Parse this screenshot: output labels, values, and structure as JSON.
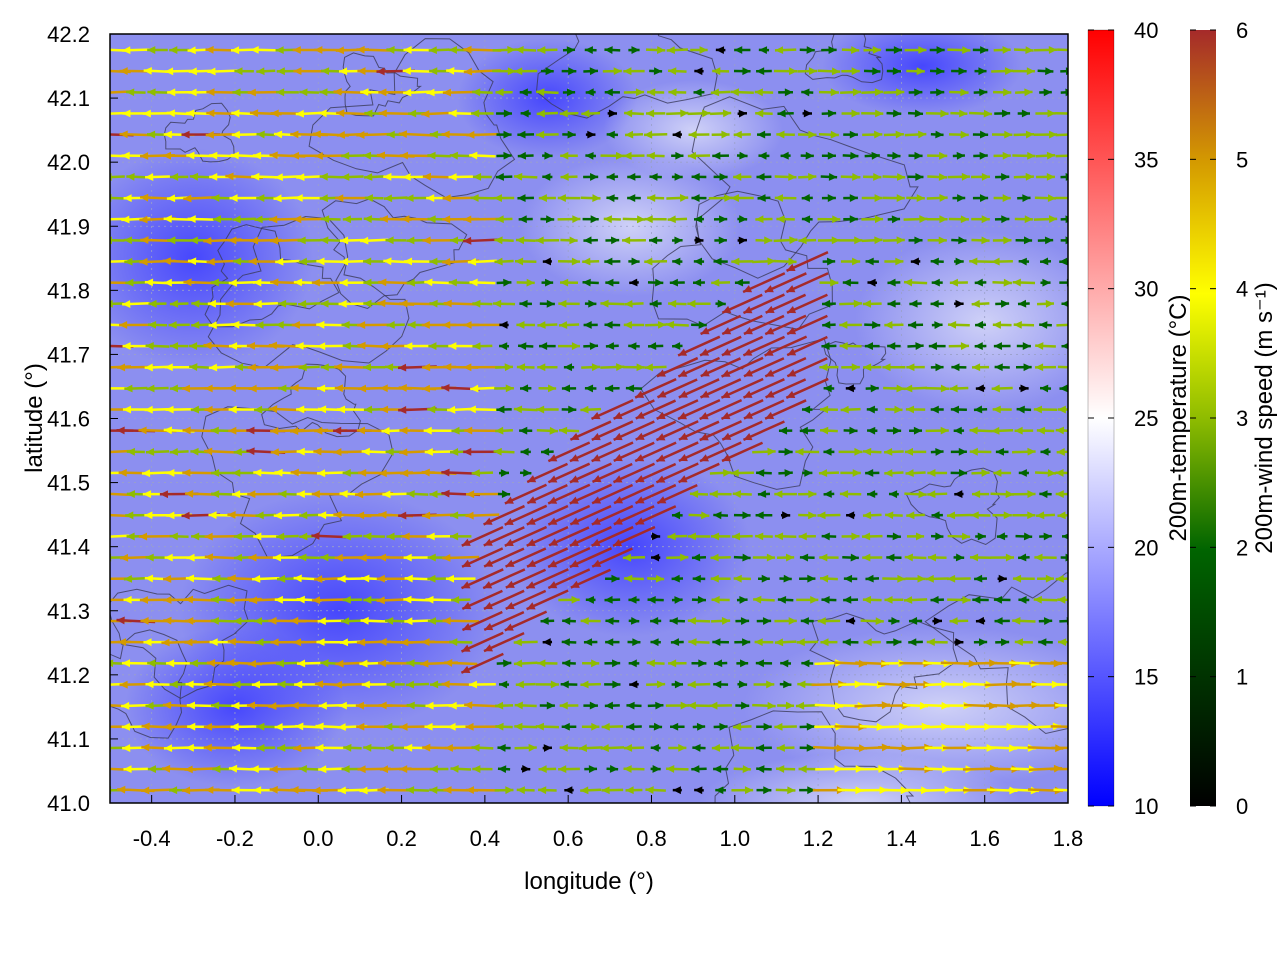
{
  "chart_data": {
    "type": "heatmap",
    "title": "",
    "xlabel": "longitude (°)",
    "ylabel": "latitude (°)",
    "xlim": [
      -0.5,
      1.8
    ],
    "ylim": [
      41.0,
      42.2
    ],
    "x_ticks": [
      "-0.4",
      "-0.2",
      "0.0",
      "0.2",
      "0.4",
      "0.6",
      "0.8",
      "1.0",
      "1.2",
      "1.4",
      "1.6",
      "1.8"
    ],
    "y_ticks": [
      "41.0",
      "41.1",
      "41.2",
      "41.3",
      "41.4",
      "41.5",
      "41.6",
      "41.7",
      "41.8",
      "41.9",
      "42.0",
      "42.1",
      "42.2"
    ],
    "grid": true,
    "overlays": [
      "terrain contour lines",
      "wind vectors (arrows) colored by speed"
    ],
    "temperature_colorbar": {
      "label": "200m-temperature (°C)",
      "range": [
        10,
        40
      ],
      "ticks": [
        "10",
        "15",
        "20",
        "25",
        "30",
        "35",
        "40"
      ],
      "colors": [
        "#0000ff",
        "#ffffff",
        "#ff0000"
      ]
    },
    "wind_colorbar": {
      "label": "200m-wind speed (m s⁻¹)",
      "range": [
        0,
        6
      ],
      "ticks": [
        "0",
        "1",
        "2",
        "3",
        "4",
        "5",
        "6"
      ],
      "colors": [
        "#000000",
        "#006400",
        "#8fbc00",
        "#ffff00",
        "#d49a00",
        "#a52a2a"
      ]
    }
  }
}
